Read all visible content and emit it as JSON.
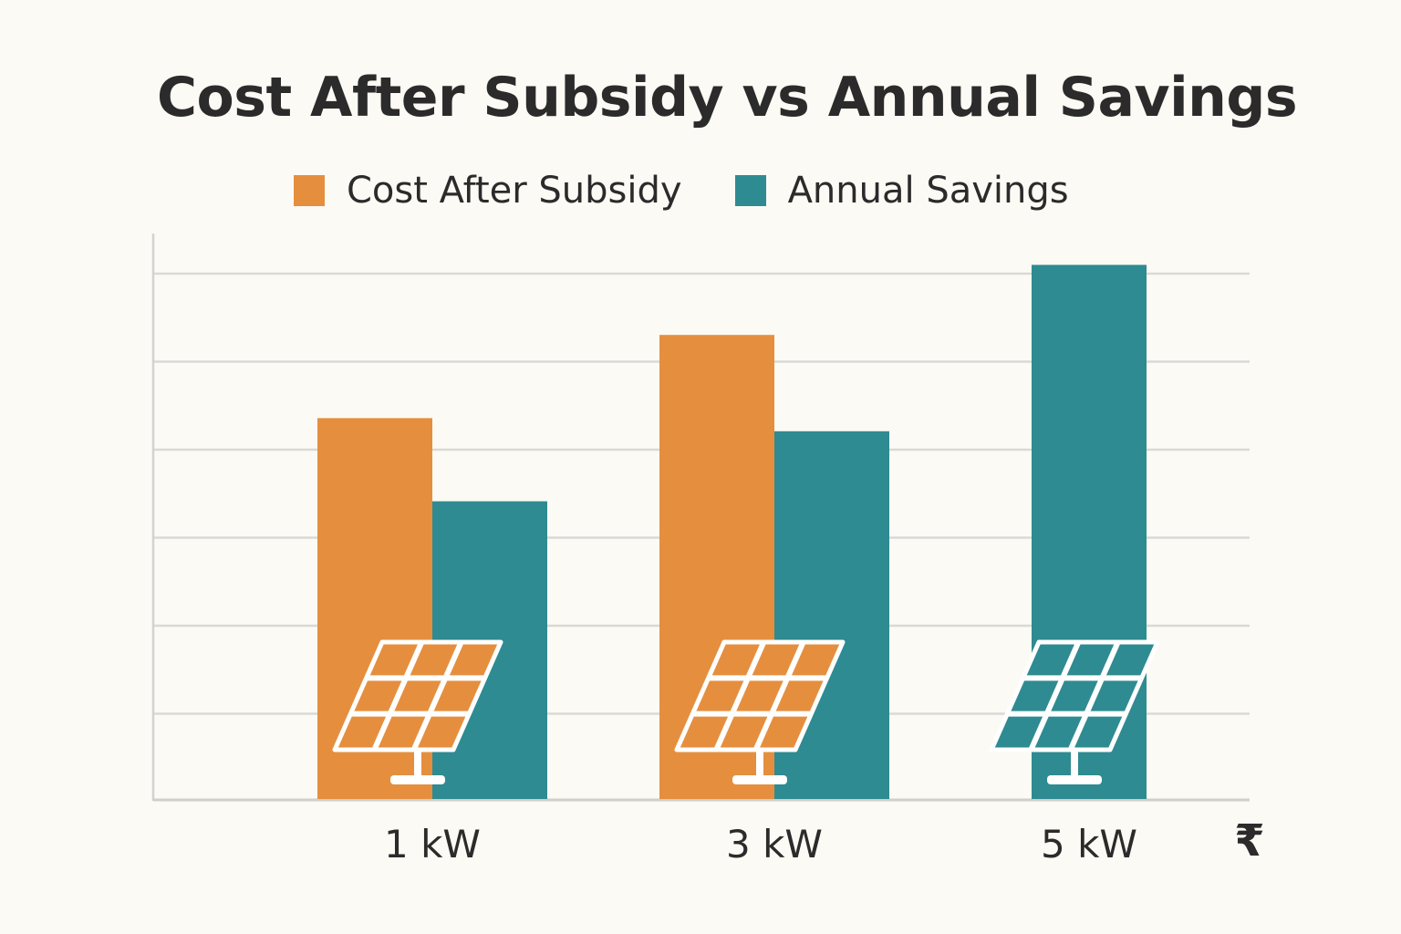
{
  "chart_data": {
    "type": "bar",
    "title": "Cost After Subsidy vs Annual Savings",
    "xlabel": "",
    "ylabel": "",
    "currency_symbol": "₹",
    "categories": [
      "1 kW",
      "3 kW",
      "5 kW"
    ],
    "series": [
      {
        "name": "Cost After Subsidy",
        "color": "#e58f3e",
        "values": [
          4.35,
          5.3,
          null
        ]
      },
      {
        "name": "Annual Savings",
        "color": "#2e8b91",
        "values": [
          3.4,
          4.2,
          6.1
        ]
      }
    ],
    "ylim": [
      0,
      6.5
    ],
    "grid": true,
    "legend_position": "top",
    "icon": "solar-panel-icon"
  }
}
